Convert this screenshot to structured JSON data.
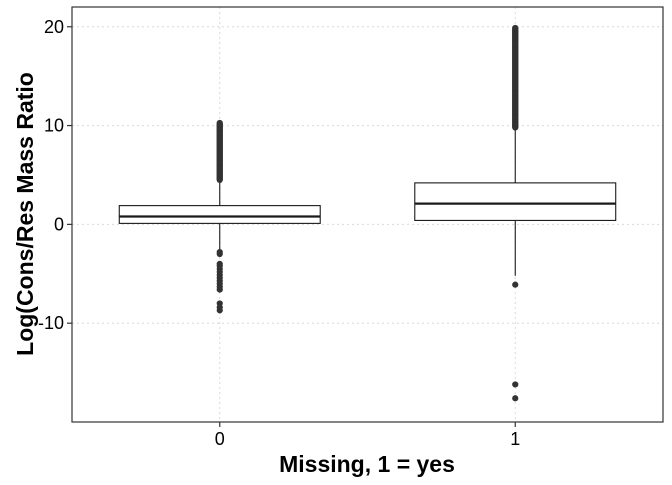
{
  "chart_data": {
    "type": "box",
    "xlabel": "Missing, 1 = yes",
    "ylabel": "Log(Cons/Res Mass Ratio",
    "categories": [
      "0",
      "1"
    ],
    "ylim": [
      -20,
      22
    ],
    "y_ticks": [
      -10,
      0,
      10,
      20
    ],
    "grid": true,
    "grid_style": "dotted",
    "colors": {
      "box_fill": "#ffffff",
      "box_stroke": "#1a1a1a",
      "outlier": "#333333",
      "grid": "#d9d9d9",
      "panel_border": "#333333"
    },
    "boxes": [
      {
        "category": "0",
        "q1": 0.1,
        "median": 0.8,
        "q3": 1.9,
        "whisker_low": -2.6,
        "whisker_high": 4.5,
        "outliers_high_range": [
          4.5,
          10.3
        ],
        "outliers_low": [
          -2.8,
          -3.0,
          -4.0,
          -4.2,
          -4.5,
          -4.8,
          -5.1,
          -5.4,
          -5.7,
          -6.0,
          -6.3,
          -6.6,
          -8.0,
          -8.4,
          -8.7
        ]
      },
      {
        "category": "1",
        "q1": 0.4,
        "median": 2.1,
        "q3": 4.2,
        "whisker_low": -5.2,
        "whisker_high": 9.8,
        "outliers_high_range": [
          9.8,
          19.9
        ],
        "outliers_low": [
          -6.1,
          -16.2,
          -17.6
        ]
      }
    ]
  }
}
